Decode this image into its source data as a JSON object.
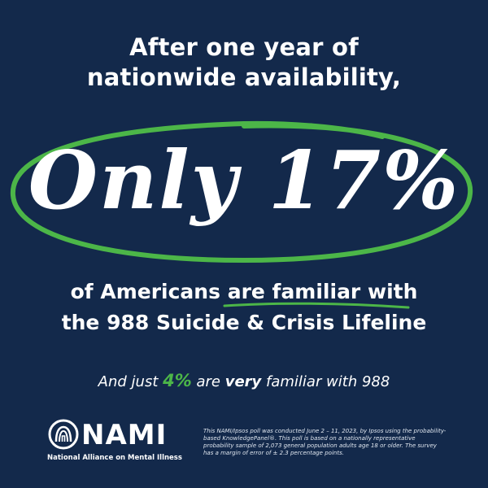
{
  "headline": {
    "line1": "After one year of",
    "line2": "nationwide availability,"
  },
  "big_text": "Only 17%",
  "subline": {
    "line1_start": "of Americans ",
    "line1_highlight": "are familiar",
    "line1_end": " with",
    "line2": "the 988 Suicide & Crisis Lifeline"
  },
  "note": {
    "part1": "And just ",
    "percent": "4%",
    "part2": " are ",
    "emphasis": "very",
    "part3": " familiar with 988"
  },
  "logo": {
    "name": "NAMI",
    "tagline": "National Alliance on Mental Illness"
  },
  "disclaimer": "This NAMI/Ipsos poll was conducted June 2 – 11, 2023, by Ipsos using the probability-based KnowledgePanel®. This poll is based on a nationally representative probability sample of 2,073 general population adults age 18 or older. The survey has a margin of error of ± 2.3 percentage points.",
  "colors": {
    "background": "#13294b",
    "accent_green": "#4cb648",
    "text": "#ffffff"
  }
}
